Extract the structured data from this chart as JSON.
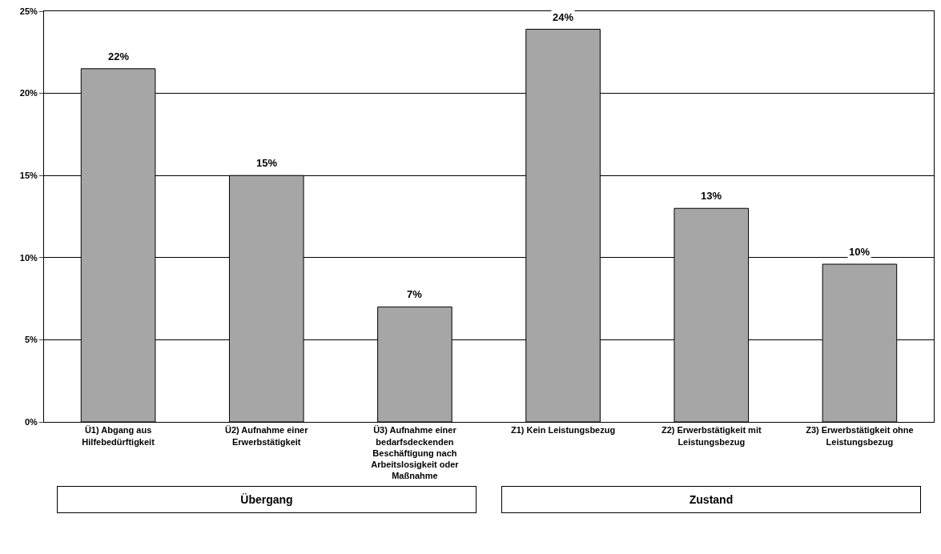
{
  "chart_data": {
    "type": "bar",
    "categories": [
      "Ü1) Abgang aus Hilfebedürftigkeit",
      "Ü2) Aufnahme einer Erwerbstätigkeit",
      "Ü3) Aufnahme einer bedarfsdeckenden Beschäftigung nach Arbeitslosigkeit oder Maßnahme",
      "Z1) Kein Leistungsbezug",
      "Z2) Erwerbstätigkeit mit Leistungsbezug",
      "Z3) Erwerbstätigkeit ohne Leistungsbezug"
    ],
    "values": [
      21.5,
      15,
      7,
      23.9,
      13,
      9.6
    ],
    "value_labels": [
      "22%",
      "15%",
      "7%",
      "24%",
      "13%",
      "10%"
    ],
    "color": "#a6a6a6",
    "ylim": [
      0,
      25
    ],
    "yticks": [
      {
        "value": 0,
        "label": "0%"
      },
      {
        "value": 5,
        "label": "5%"
      },
      {
        "value": 10,
        "label": "10%"
      },
      {
        "value": 15,
        "label": "15%"
      },
      {
        "value": 20,
        "label": "20%"
      },
      {
        "value": 25,
        "label": "25%"
      }
    ],
    "grid": "y",
    "annotations": [
      "Übergang",
      "Zustand"
    ]
  }
}
